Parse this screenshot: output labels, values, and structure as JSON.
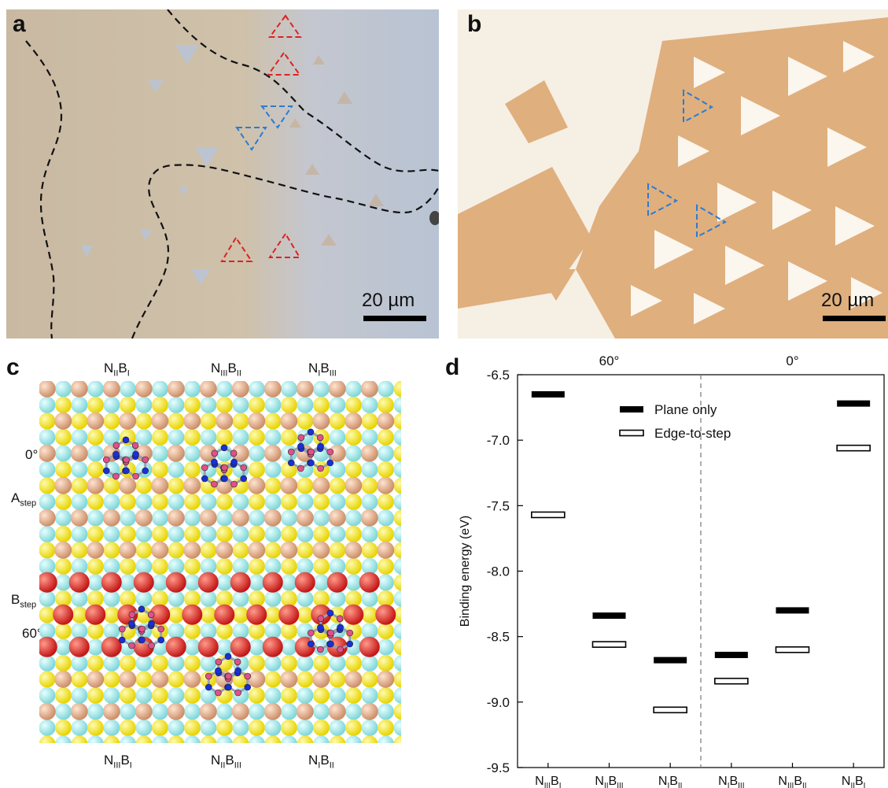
{
  "panels": {
    "a": {
      "letter": "a",
      "scale_label": "20 µm"
    },
    "b": {
      "letter": "b",
      "scale_label": "20 µm"
    },
    "c": {
      "letter": "c",
      "top_labels": [
        {
          "N": "II",
          "B": "I"
        },
        {
          "N": "III",
          "B": "II"
        },
        {
          "N": "I",
          "B": "III"
        }
      ],
      "bottom_labels": [
        {
          "N": "III",
          "B": "I"
        },
        {
          "N": "II",
          "B": "III"
        },
        {
          "N": "I",
          "B": "II"
        }
      ],
      "left_labels": {
        "zero": "0°",
        "a_step_main": "A",
        "a_step_sub": "step",
        "b_step_main": "B",
        "b_step_sub": "step",
        "sixty": "60°"
      }
    },
    "d": {
      "letter": "d"
    }
  },
  "chart_data": {
    "type": "bar",
    "title": "",
    "ylabel": "Binding energy (eV)",
    "xlabel": "",
    "ylim": [
      -9.5,
      -6.5
    ],
    "yticks": [
      -6.5,
      -7.0,
      -7.5,
      -8.0,
      -8.5,
      -9.0,
      -9.5
    ],
    "ytick_labels": [
      "-6.5",
      "-7.0",
      "-7.5",
      "-8.0",
      "-8.5",
      "-9.0",
      "-9.5"
    ],
    "groups": [
      {
        "label": "60°",
        "categories": [
          0,
          1,
          2
        ]
      },
      {
        "label": "0°",
        "categories": [
          3,
          4,
          5
        ]
      }
    ],
    "categories": [
      {
        "N": "III",
        "B": "I"
      },
      {
        "N": "II",
        "B": "III"
      },
      {
        "N": "I",
        "B": "II"
      },
      {
        "N": "I",
        "B": "III"
      },
      {
        "N": "III",
        "B": "II"
      },
      {
        "N": "II",
        "B": "I"
      }
    ],
    "series": [
      {
        "name": "Plane only",
        "style": "filled",
        "color": "#000000",
        "values": [
          -6.65,
          -8.34,
          -8.68,
          -8.64,
          -8.3,
          -6.72
        ]
      },
      {
        "name": "Edge-to-step",
        "style": "open",
        "color": "#000000",
        "values": [
          -7.57,
          -8.56,
          -9.06,
          -8.84,
          -8.6,
          -7.06
        ]
      }
    ],
    "legend_position": "top-center",
    "divider": "dashed line between 60° and 0° groups"
  }
}
